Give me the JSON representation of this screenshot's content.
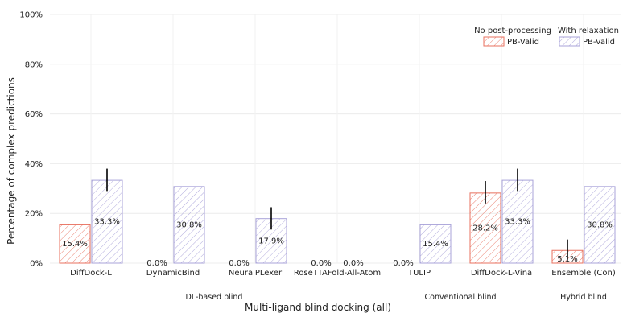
{
  "chart_data": {
    "type": "bar",
    "xlabel": "Multi-ligand blind docking (all)",
    "ylabel": "Percentage of complex predictions",
    "ylim": [
      0,
      100
    ],
    "yticks": [
      0,
      20,
      40,
      60,
      80,
      100
    ],
    "ytick_labels": [
      "0%",
      "20%",
      "40%",
      "60%",
      "80%",
      "100%"
    ],
    "grid": true,
    "legend_position": "top-right",
    "categories": [
      "DiffDock-L",
      "DynamicBind",
      "NeuralPLexer",
      "RoseTTAFold-All-Atom",
      "TULIP",
      "DiffDock-L-Vina",
      "Ensemble (Con)"
    ],
    "groups": [
      {
        "label": "DL-based blind",
        "members": [
          "DiffDock-L",
          "DynamicBind",
          "NeuralPLexer",
          "RoseTTAFold-All-Atom"
        ]
      },
      {
        "label": "Conventional blind",
        "members": [
          "TULIP",
          "DiffDock-L-Vina"
        ]
      },
      {
        "label": "Hybrid blind",
        "members": [
          "Ensemble (Con)"
        ]
      }
    ],
    "series": [
      {
        "name": "PB-Valid",
        "legend_title": "No post-processing",
        "color": "#e8705f",
        "values": [
          15.4,
          0.0,
          0.0,
          0.0,
          0.0,
          28.2,
          5.1
        ],
        "labels": [
          "15.4%",
          "0.0%",
          "0.0%",
          "0.0%",
          "0.0%",
          "28.2%",
          "5.1%"
        ],
        "error": [
          null,
          null,
          null,
          null,
          null,
          [
            24,
            33
          ],
          [
            1.5,
            9.5
          ]
        ]
      },
      {
        "name": "PB-Valid",
        "legend_title": "With relaxation",
        "color": "#a9a3d9",
        "values": [
          33.3,
          30.8,
          17.9,
          0.0,
          15.4,
          33.3,
          30.8
        ],
        "labels": [
          "33.3%",
          "30.8%",
          "17.9%",
          "0.0%",
          "15.4%",
          "33.3%",
          "30.8%"
        ],
        "error": [
          [
            29,
            38
          ],
          null,
          [
            13.5,
            22.5
          ],
          null,
          null,
          [
            29,
            38
          ],
          null
        ]
      }
    ]
  }
}
